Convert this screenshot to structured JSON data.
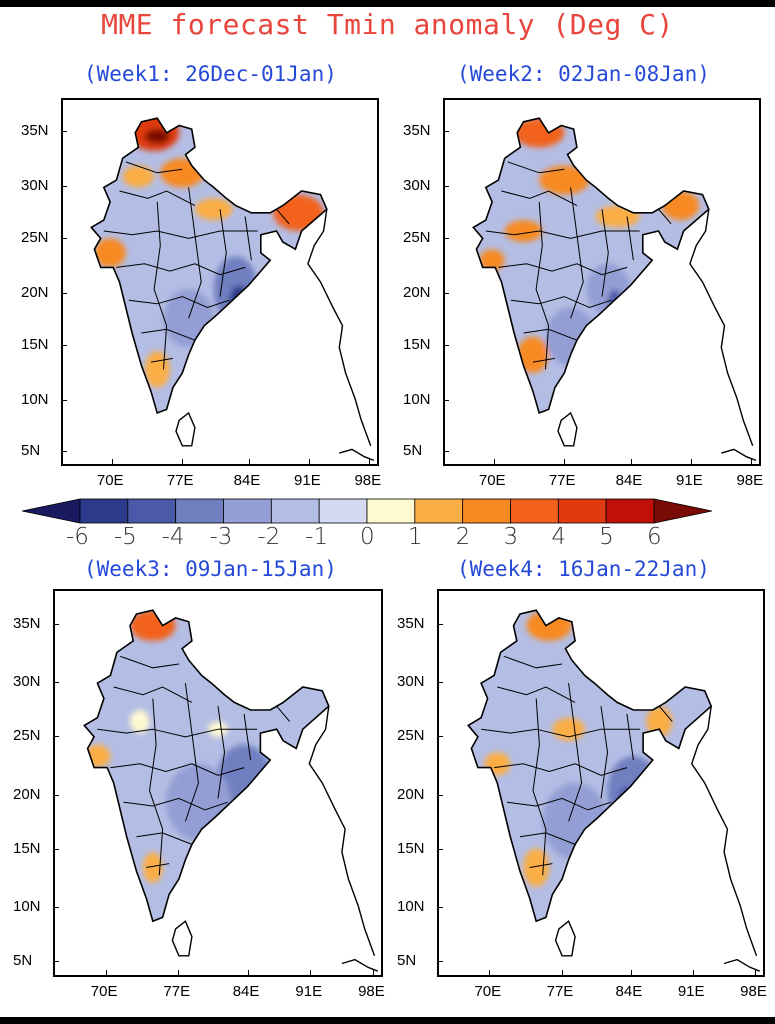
{
  "title": "MME forecast Tmin anomaly (Deg C)",
  "panels": [
    {
      "subtitle": "(Week1: 26Dec-01Jan)"
    },
    {
      "subtitle": "(Week2: 02Jan-08Jan)"
    },
    {
      "subtitle": "(Week3: 09Jan-15Jan)"
    },
    {
      "subtitle": "(Week4: 16Jan-22Jan)"
    }
  ],
  "lat_labels": [
    "35N",
    "30N",
    "25N",
    "20N",
    "15N",
    "10N",
    "5N"
  ],
  "lon_labels": [
    "70E",
    "77E",
    "84E",
    "91E",
    "98E"
  ],
  "colorbar": {
    "labels": [
      "-6",
      "-5",
      "-4",
      "-3",
      "-2",
      "-1",
      "0",
      "1",
      "2",
      "3",
      "4",
      "5",
      "6"
    ],
    "colors": [
      "#1a1a60",
      "#2d3a8c",
      "#4a5aa8",
      "#6f7fc0",
      "#939fd4",
      "#b4bde4",
      "#d5daf2",
      "#fff9d2",
      "#fbae44",
      "#f78a22",
      "#f2621a",
      "#e03a10",
      "#c01008",
      "#7a0a04"
    ]
  }
}
